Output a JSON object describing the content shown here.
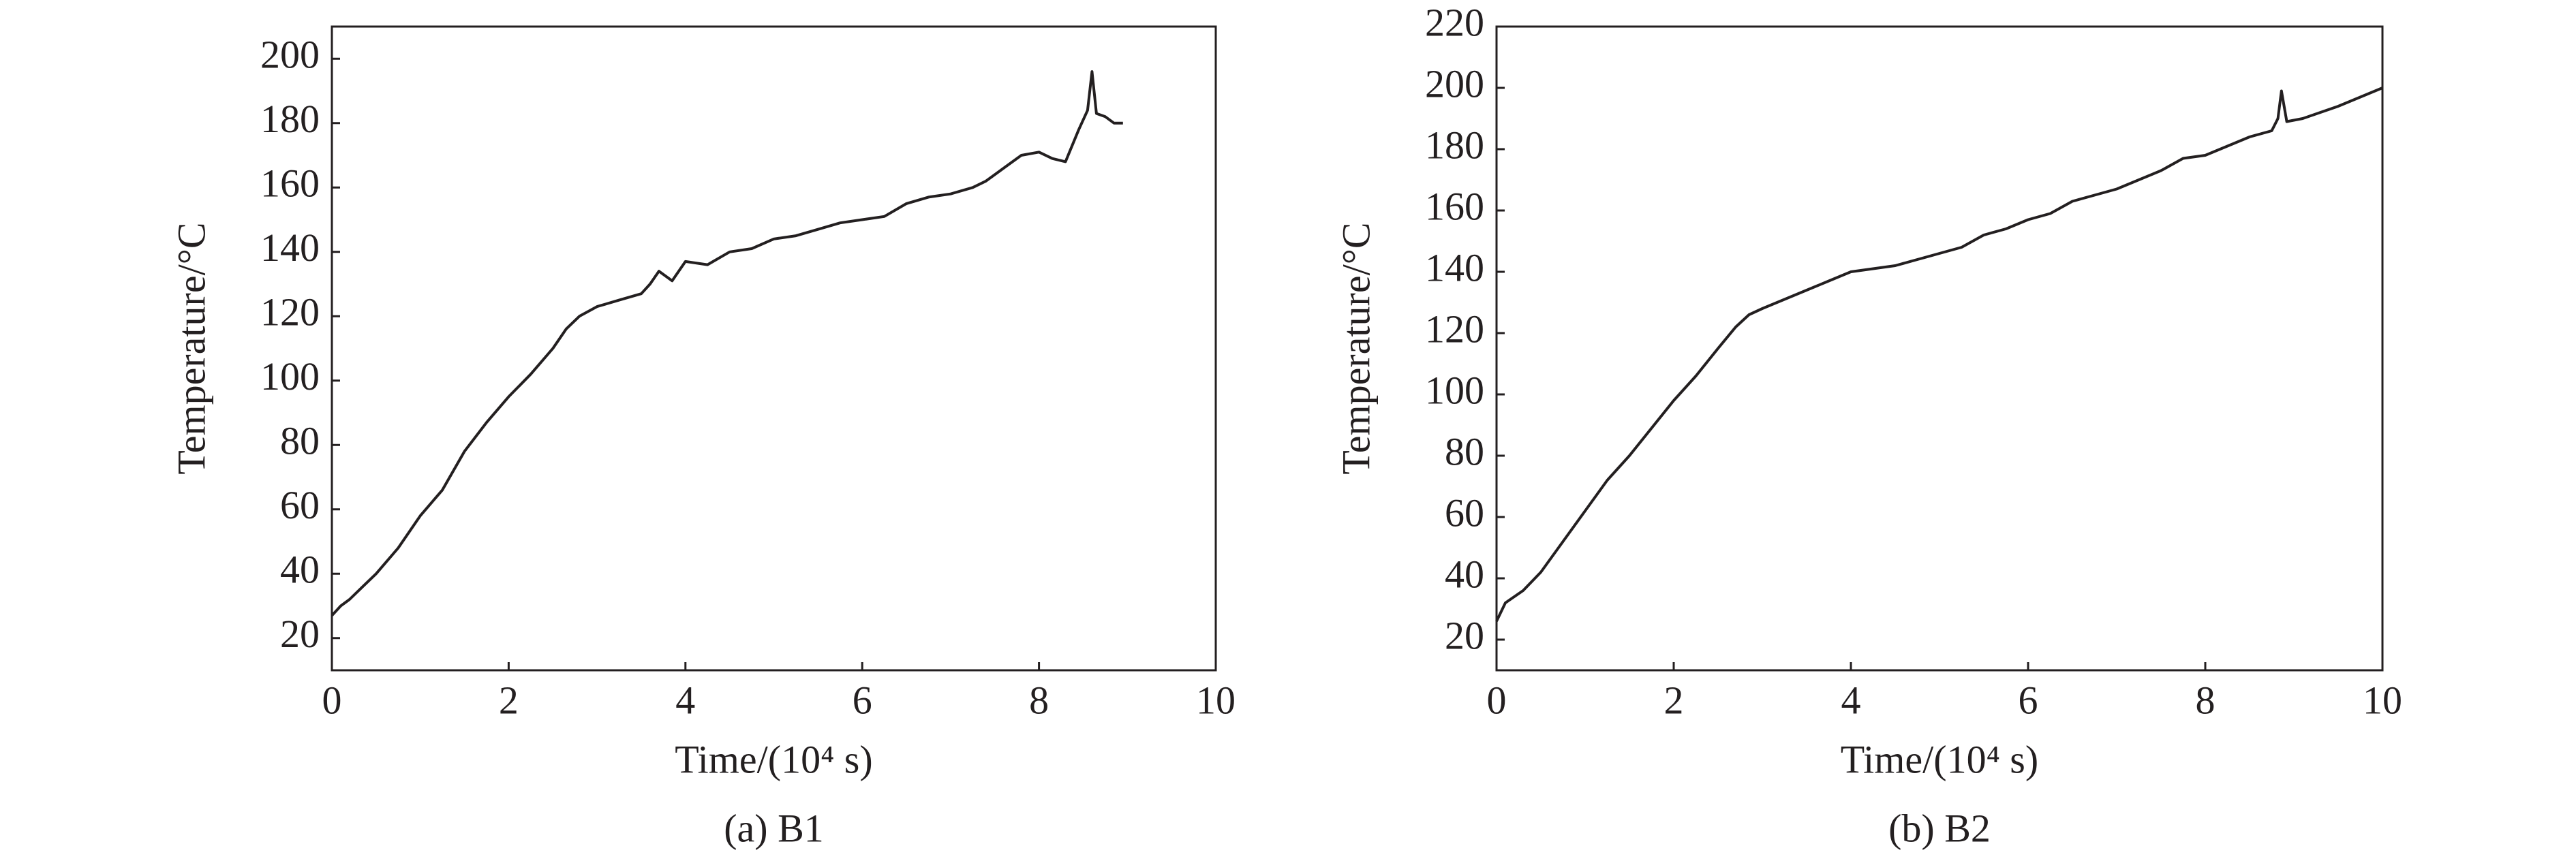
{
  "chart_data": [
    {
      "type": "line",
      "caption": "(a) B1",
      "xlabel": "Time/(10⁴ s)",
      "ylabel": "Temperature/°C",
      "color": "#231f20",
      "xlim": [
        0,
        10
      ],
      "xticks": [
        0,
        2,
        4,
        6,
        8,
        10
      ],
      "ylim": [
        10,
        210
      ],
      "yticks": [
        20,
        40,
        60,
        80,
        100,
        120,
        140,
        160,
        180,
        200
      ],
      "x": [
        0,
        0.1,
        0.2,
        0.35,
        0.5,
        0.75,
        1,
        1.25,
        1.5,
        1.75,
        2,
        2.25,
        2.5,
        2.65,
        2.8,
        3,
        3.25,
        3.5,
        3.6,
        3.7,
        3.85,
        4,
        4.25,
        4.5,
        4.75,
        5,
        5.25,
        5.5,
        5.75,
        6,
        6.25,
        6.5,
        6.75,
        7,
        7.25,
        7.4,
        7.6,
        7.8,
        8,
        8.15,
        8.3,
        8.45,
        8.55,
        8.6,
        8.65,
        8.75,
        8.85,
        8.95
      ],
      "values": [
        27,
        30,
        32,
        36,
        40,
        48,
        58,
        66,
        78,
        87,
        95,
        102,
        110,
        116,
        120,
        123,
        125,
        127,
        130,
        134,
        131,
        137,
        136,
        140,
        141,
        144,
        145,
        147,
        149,
        150,
        151,
        155,
        157,
        158,
        160,
        162,
        166,
        170,
        171,
        169,
        168,
        178,
        184,
        196,
        183,
        182,
        180,
        180
      ]
    },
    {
      "type": "line",
      "caption": "(b) B2",
      "xlabel": "Time/(10⁴ s)",
      "ylabel": "Temperature/°C",
      "color": "#231f20",
      "xlim": [
        0,
        10
      ],
      "xticks": [
        0,
        2,
        4,
        6,
        8,
        10
      ],
      "ylim": [
        10,
        220
      ],
      "yticks": [
        20,
        40,
        60,
        80,
        100,
        120,
        140,
        160,
        180,
        200,
        220
      ],
      "x": [
        0,
        0.1,
        0.3,
        0.5,
        0.75,
        1,
        1.25,
        1.5,
        1.75,
        2,
        2.25,
        2.5,
        2.7,
        2.85,
        3,
        3.25,
        3.5,
        3.75,
        4,
        4.25,
        4.5,
        4.75,
        5,
        5.25,
        5.5,
        5.75,
        6,
        6.25,
        6.5,
        6.75,
        7,
        7.25,
        7.5,
        7.75,
        8,
        8.25,
        8.5,
        8.75,
        8.82,
        8.86,
        8.92,
        9.1,
        9.3,
        9.5,
        9.75,
        10
      ],
      "values": [
        26,
        32,
        36,
        42,
        52,
        62,
        72,
        80,
        89,
        98,
        106,
        115,
        122,
        126,
        128,
        131,
        134,
        137,
        140,
        141,
        142,
        144,
        146,
        148,
        152,
        154,
        157,
        159,
        163,
        165,
        167,
        170,
        173,
        177,
        178,
        181,
        184,
        186,
        190,
        199,
        189,
        190,
        192,
        194,
        197,
        200
      ]
    }
  ]
}
